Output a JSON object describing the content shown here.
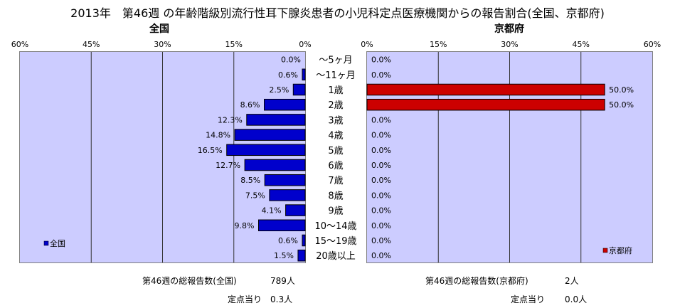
{
  "title": "2013年　第46週 の年齢階級別流行性耳下腺炎患者の小児科定点医療機関からの報告割合(全国、京都府)",
  "colors": {
    "plot_bg": "#ccccff",
    "national_bar": "#0000cc",
    "kyoto_bar": "#cc0000",
    "grid": "#333333"
  },
  "chart_data": [
    {
      "type": "bar",
      "orientation": "horizontal",
      "direction": "right-to-left",
      "title": "全国",
      "legend": "全国",
      "legend_position": "bottom-left",
      "xlim": [
        0,
        60
      ],
      "x_ticks": [
        "60%",
        "45%",
        "30%",
        "15%",
        "0%"
      ],
      "grid": true,
      "categories": [
        "～5ヶ月",
        "～11ヶ月",
        "1歳",
        "2歳",
        "3歳",
        "4歳",
        "5歳",
        "6歳",
        "7歳",
        "8歳",
        "9歳",
        "10～14歳",
        "15～19歳",
        "20歳以上"
      ],
      "values": [
        0.0,
        0.6,
        2.5,
        8.6,
        12.3,
        14.8,
        16.5,
        12.7,
        8.5,
        7.5,
        4.1,
        9.8,
        0.6,
        1.5
      ],
      "value_labels": [
        "0.0%",
        "0.6%",
        "2.5%",
        "8.6%",
        "12.3%",
        "14.8%",
        "16.5%",
        "12.7%",
        "8.5%",
        "7.5%",
        "4.1%",
        "9.8%",
        "0.6%",
        "1.5%"
      ]
    },
    {
      "type": "bar",
      "orientation": "horizontal",
      "direction": "left-to-right",
      "title": "京都府",
      "legend": "京都府",
      "legend_position": "bottom-right",
      "xlim": [
        0,
        60
      ],
      "x_ticks": [
        "0%",
        "15%",
        "30%",
        "45%",
        "60%"
      ],
      "grid": true,
      "categories": [
        "～5ヶ月",
        "～11ヶ月",
        "1歳",
        "2歳",
        "3歳",
        "4歳",
        "5歳",
        "6歳",
        "7歳",
        "8歳",
        "9歳",
        "10～14歳",
        "15～19歳",
        "20歳以上"
      ],
      "values": [
        0.0,
        0.0,
        50.0,
        50.0,
        0.0,
        0.0,
        0.0,
        0.0,
        0.0,
        0.0,
        0.0,
        0.0,
        0.0,
        0.0
      ],
      "value_labels": [
        "0.0%",
        "0.0%",
        "50.0%",
        "50.0%",
        "0.0%",
        "0.0%",
        "0.0%",
        "0.0%",
        "0.0%",
        "0.0%",
        "0.0%",
        "0.0%",
        "0.0%",
        "0.0%"
      ]
    }
  ],
  "footer": {
    "national_total_label": "第46週の総報告数(全国)",
    "national_total_value": "789人",
    "national_per_label": "定点当り",
    "national_per_value": "0.3人",
    "kyoto_total_label": "第46週の総報告数(京都府)",
    "kyoto_total_value": "2人",
    "kyoto_per_label": "定点当り",
    "kyoto_per_value": "0.0人"
  }
}
